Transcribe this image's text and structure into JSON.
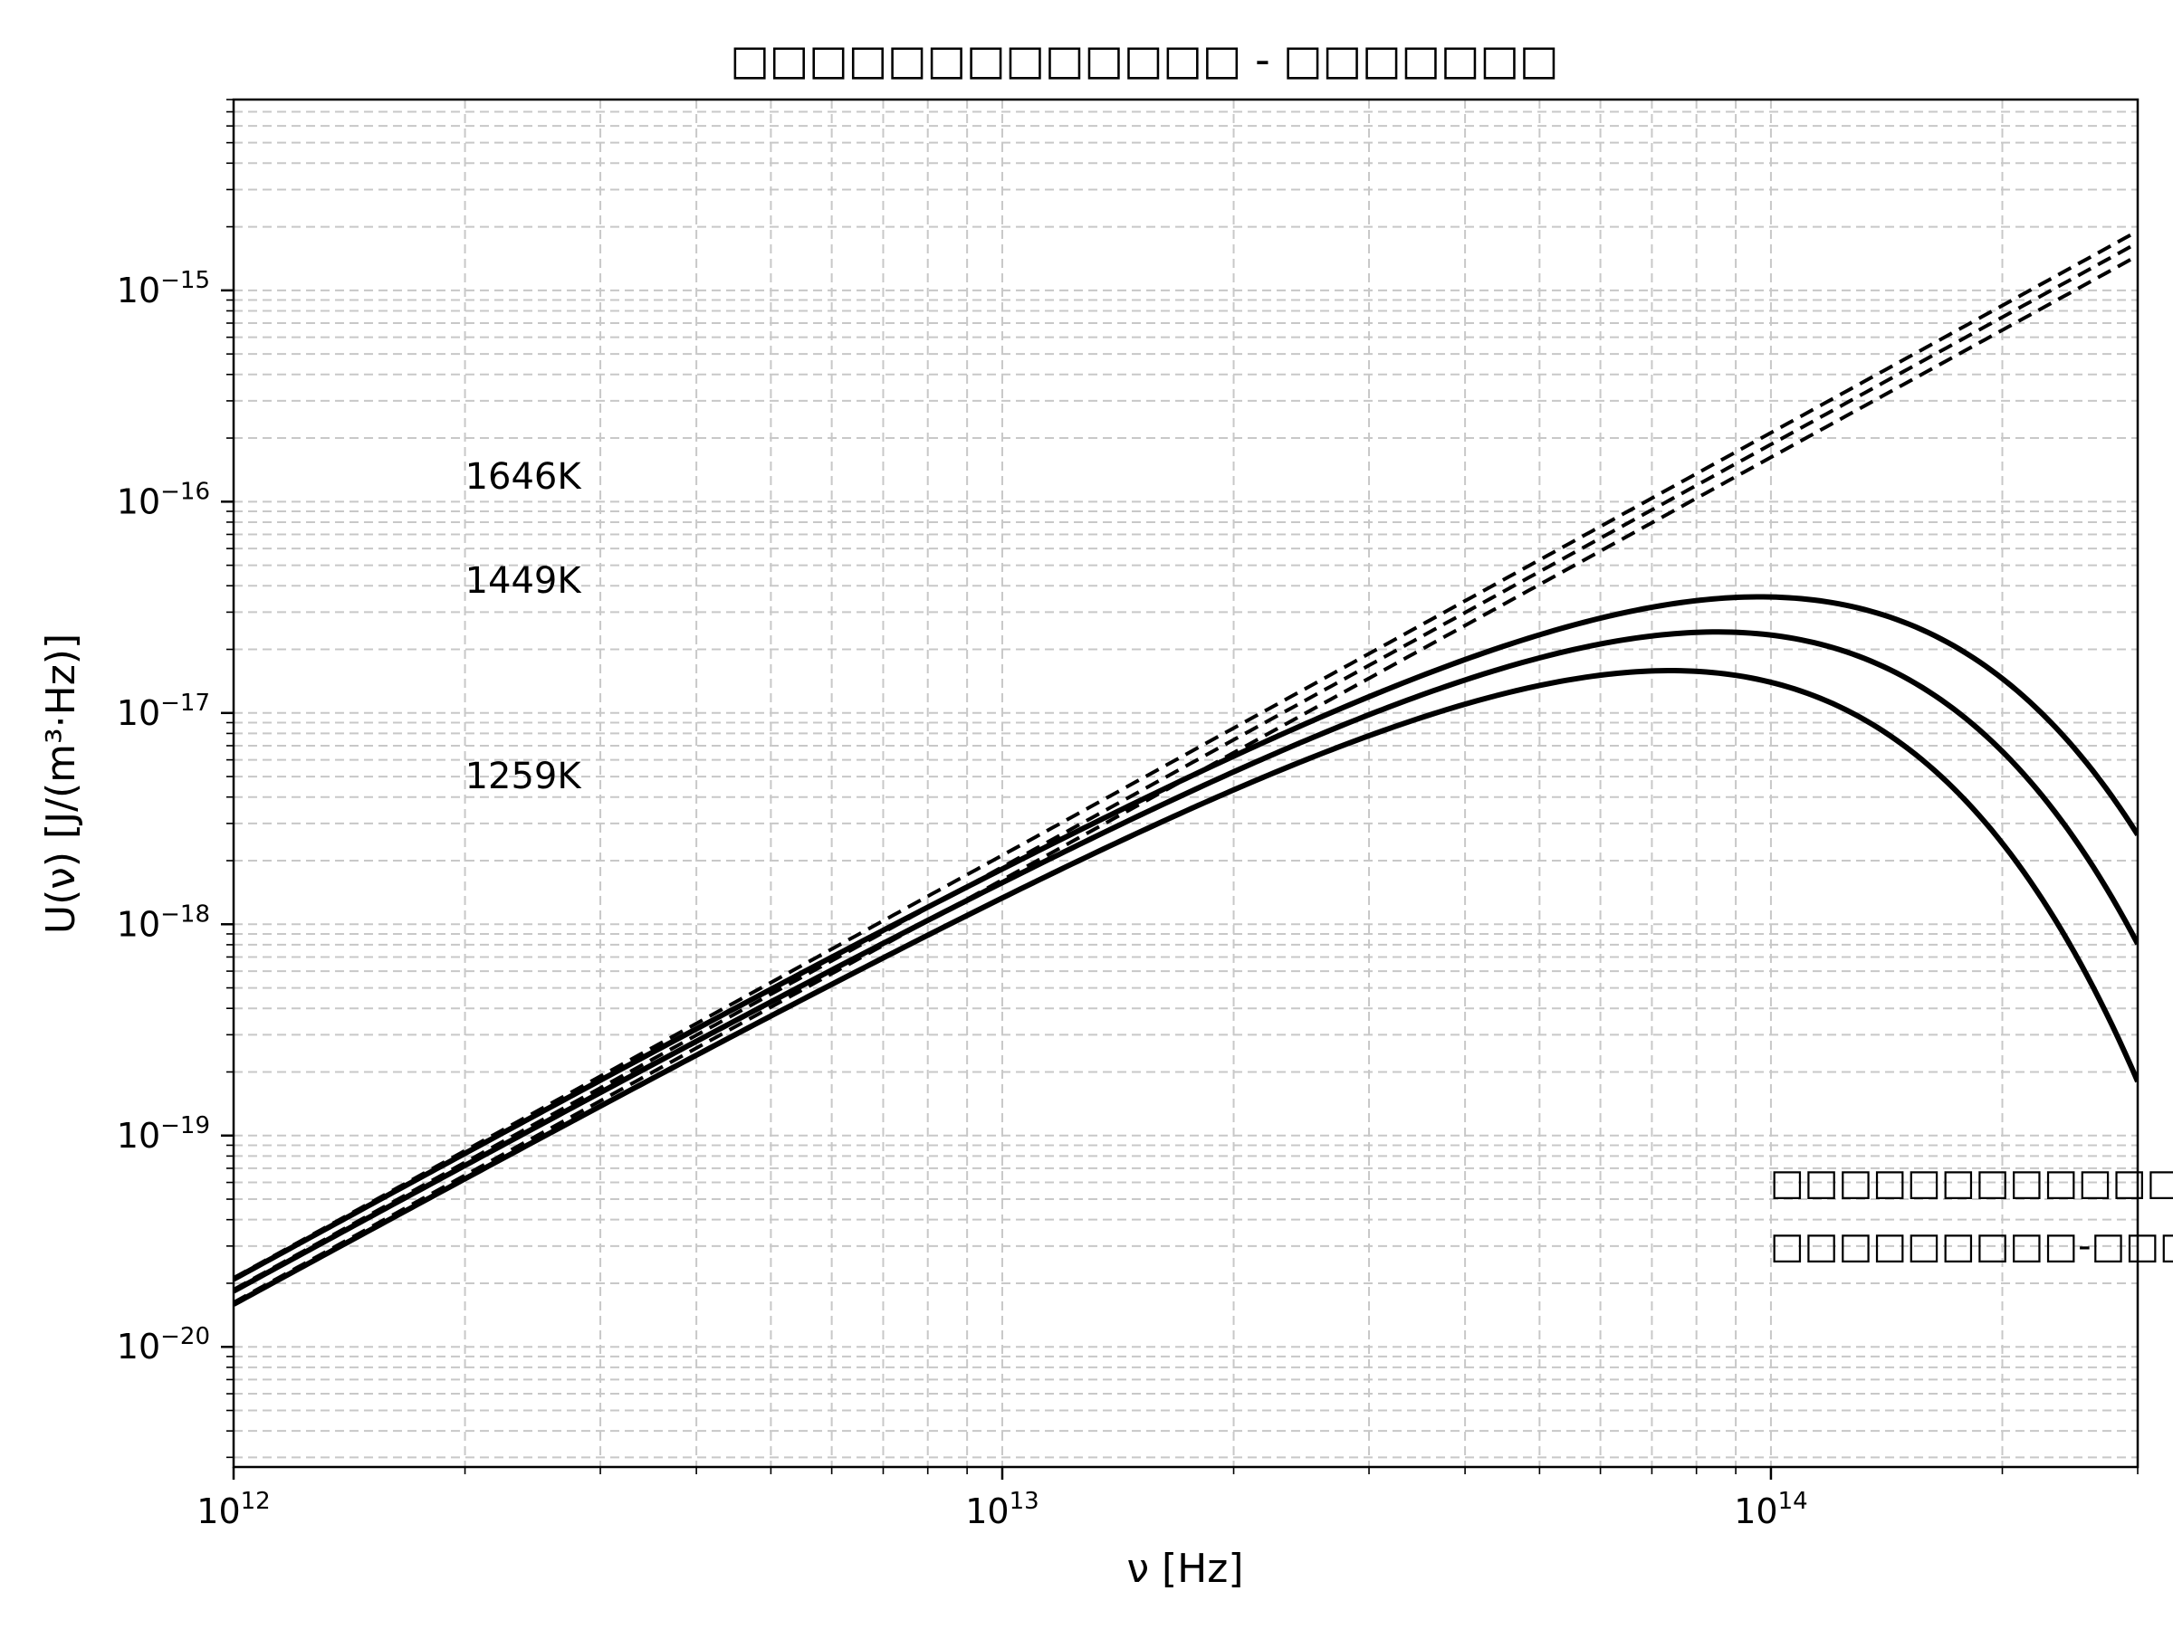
{
  "chart_data": {
    "type": "line",
    "title": "□□□□□□□□□□□□□ - □□□□□□□",
    "xlabel": "ν [Hz]",
    "ylabel": "U(ν) [J/(m³·Hz)]",
    "xscale": "log",
    "yscale": "log",
    "xlim": [
      1000000000000.0,
      300000000000000.0
    ],
    "ylim": [
      2.7e-21,
      8e-15
    ],
    "grid": true,
    "x_ticks": [
      {
        "base": "10",
        "exp": "12",
        "value": 1000000000000.0
      },
      {
        "base": "10",
        "exp": "13",
        "value": 10000000000000.0
      },
      {
        "base": "10",
        "exp": "14",
        "value": 100000000000000.0
      }
    ],
    "y_ticks": [
      {
        "base": "10",
        "exp": "−20",
        "value": 1e-20
      },
      {
        "base": "10",
        "exp": "−19",
        "value": 1e-19
      },
      {
        "base": "10",
        "exp": "−18",
        "value": 1e-18
      },
      {
        "base": "10",
        "exp": "−17",
        "value": 1e-17
      },
      {
        "base": "10",
        "exp": "−16",
        "value": 1e-16
      },
      {
        "base": "10",
        "exp": "−15",
        "value": 1e-15
      }
    ],
    "series": [
      {
        "label": "1646K",
        "temperature": 1646
      },
      {
        "label": "1449K",
        "temperature": 1449
      },
      {
        "label": "1259K",
        "temperature": 1259
      }
    ],
    "curve_labels": [
      {
        "text": "1646K",
        "x": 2000000000000.0,
        "y": 1.15e-16
      },
      {
        "text": "1449K",
        "x": 2000000000000.0,
        "y": 3.7e-17
      },
      {
        "text": "1259K",
        "x": 2000000000000.0,
        "y": 4.4e-18
      }
    ],
    "legend": {
      "position": "lower-right",
      "lines": [
        "□□□□□□□□□□□□□□",
        "□□□□□□□□□-□□□□□□□□□"
      ]
    }
  }
}
